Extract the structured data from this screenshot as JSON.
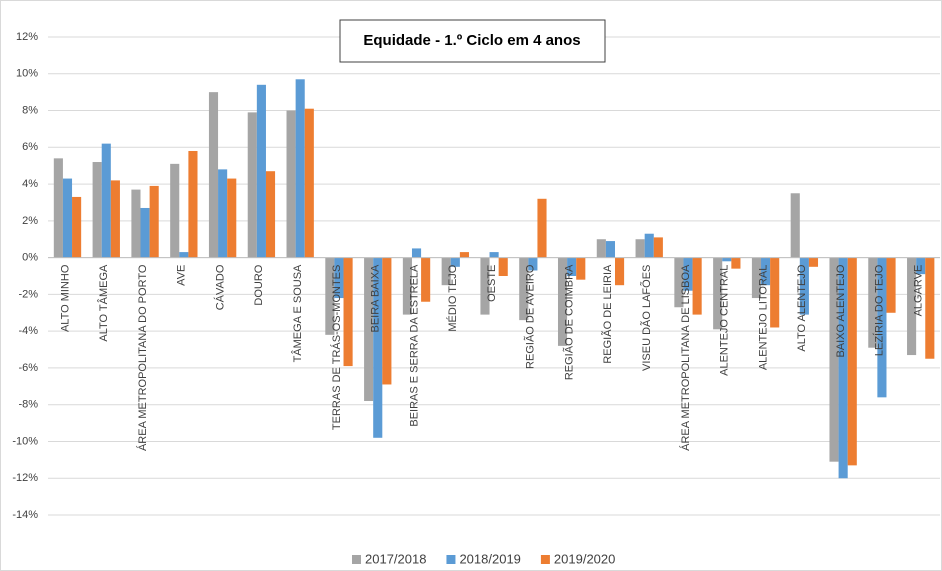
{
  "chart_data": {
    "type": "bar",
    "title": "Equidade - 1.º Ciclo em 4 anos",
    "categories": [
      "ALTO MINHO",
      "ALTO TÂMEGA",
      "ÁREA METROPOLITANA DO PORTO",
      "AVE",
      "CÁVADO",
      "DOURO",
      "TÂMEGA E SOUSA",
      "TERRAS DE TRÁS-OS-MONTES",
      "BEIRA BAIXA",
      "BEIRAS E SERRA DA ESTRELA",
      "MÉDIO TEJO",
      "OESTE",
      "REGIÃO DE AVEIRO",
      "REGIÃO DE COIMBRA",
      "REGIÃO DE LEIRIA",
      "VISEU DÃO LAFÕES",
      "ÁREA METROPOLITANA DE LISBOA",
      "ALENTEJO CENTRAL",
      "ALENTEJO LITORAL",
      "ALTO ALENTEJO",
      "BAIXO ALENTEJO",
      "LEZÍRIA DO TEJO",
      "ALGARVE"
    ],
    "series": [
      {
        "name": "2017/2018",
        "color": "#a5a5a5",
        "values": [
          5.4,
          5.2,
          3.7,
          5.1,
          9.0,
          7.9,
          8.0,
          -4.2,
          -7.8,
          -3.1,
          -1.5,
          -3.1,
          -3.4,
          -4.8,
          1.0,
          1.0,
          -2.7,
          -3.9,
          -2.2,
          3.5,
          -11.1,
          -4.9,
          -5.3
        ]
      },
      {
        "name": "2018/2019",
        "color": "#5b9bd5",
        "values": [
          4.3,
          6.2,
          2.7,
          0.3,
          4.8,
          9.4,
          9.7,
          -2.2,
          -9.8,
          0.5,
          -0.5,
          0.3,
          -0.7,
          -1.0,
          0.9,
          1.3,
          -1.8,
          -0.2,
          -1.5,
          -3.1,
          -12.0,
          -7.6,
          -0.9
        ]
      },
      {
        "name": "2019/2020",
        "color": "#ed7d31",
        "values": [
          3.3,
          4.2,
          3.9,
          5.8,
          4.3,
          4.7,
          8.1,
          -5.9,
          -6.9,
          -2.4,
          0.3,
          -1.0,
          3.2,
          -1.2,
          -1.5,
          1.1,
          -3.1,
          -0.6,
          -3.8,
          -0.5,
          -11.3,
          -3.0,
          -5.5
        ]
      }
    ],
    "ylim": [
      -14,
      12
    ],
    "yticks": [
      {
        "value": 12,
        "label": "12%"
      },
      {
        "value": 10,
        "label": "10%"
      },
      {
        "value": 8,
        "label": "8%"
      },
      {
        "value": 6,
        "label": "6%"
      },
      {
        "value": 4,
        "label": "4%"
      },
      {
        "value": 2,
        "label": "2%"
      },
      {
        "value": 0,
        "label": "0%"
      },
      {
        "value": -2,
        "label": "-2%"
      },
      {
        "value": -4,
        "label": "-4%"
      },
      {
        "value": -6,
        "label": "-6%"
      },
      {
        "value": -8,
        "label": "-8%"
      },
      {
        "value": -10,
        "label": "-10%"
      },
      {
        "value": -12,
        "label": "-12%"
      },
      {
        "value": -14,
        "label": "-14%"
      }
    ],
    "grid": true
  }
}
